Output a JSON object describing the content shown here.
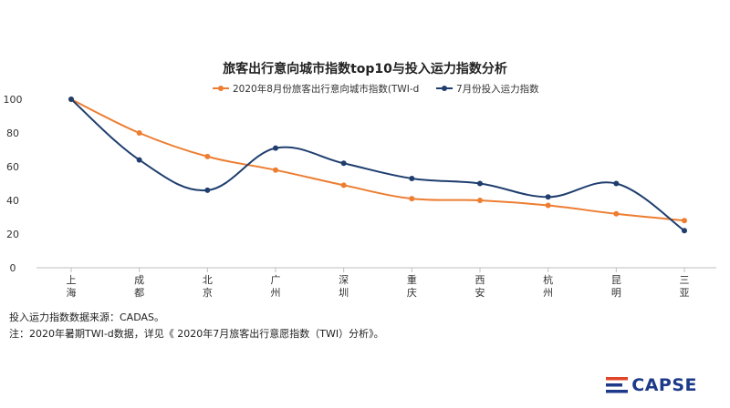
{
  "chart_data": {
    "type": "line",
    "title": "旅客出行意向城市指数top10与投入运力指数分析",
    "categories": [
      "上海",
      "成都",
      "北京",
      "广州",
      "深圳",
      "重庆",
      "西安",
      "杭州",
      "昆明",
      "三亚"
    ],
    "series": [
      {
        "name": "2020年8月份旅客出行意向城市指数(TWI-d",
        "color": "#ed7d31",
        "values": [
          100,
          80,
          66,
          58,
          49,
          41,
          40,
          37,
          32,
          28
        ]
      },
      {
        "name": "7月份投入运力指数",
        "color": "#1f3e6e",
        "values": [
          100,
          64,
          46,
          71,
          62,
          53,
          50,
          42,
          50,
          22
        ]
      }
    ],
    "ylim": [
      0,
      100
    ],
    "yticks": [
      0,
      20,
      40,
      60,
      80,
      100
    ],
    "legend": "top-center",
    "grid": false
  },
  "notes": {
    "source": "投入运力指数数据来源：CADAS。",
    "note": "注：2020年暑期TWI-d数据，详见《 2020年7月旅客出行意愿指数（TWI）分析》。"
  },
  "logo": {
    "text": "CAPSE",
    "color": "#1d3a8a",
    "accent": "#e0452a"
  }
}
